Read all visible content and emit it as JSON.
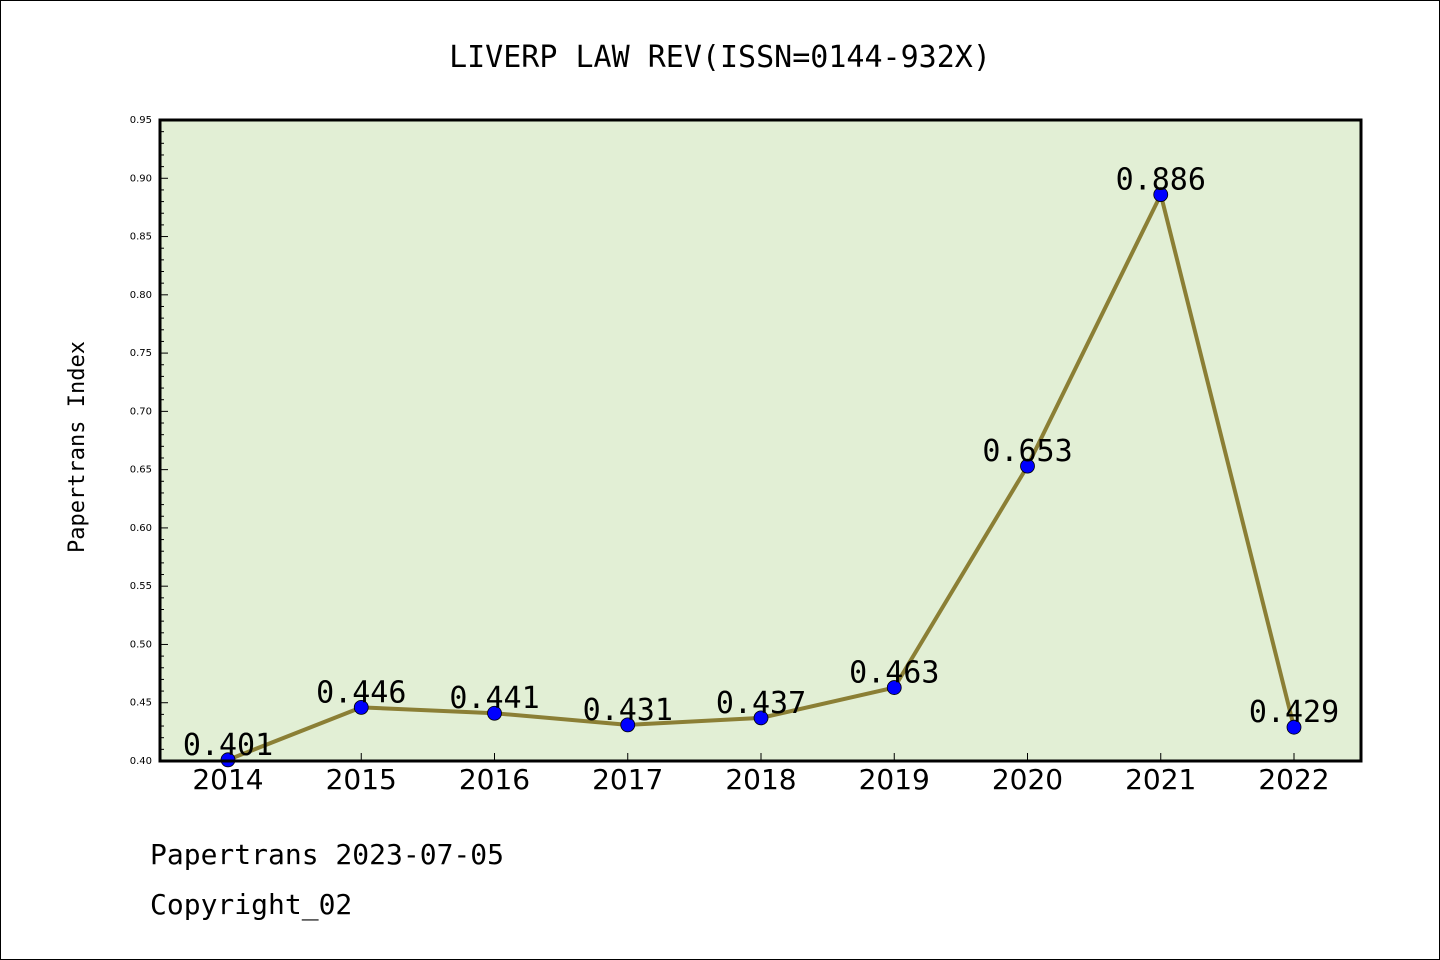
{
  "chart_data": {
    "type": "line",
    "title": "LIVERP LAW REV(ISSN=0144-932X)",
    "xlabel": "",
    "ylabel": "Papertrans Index",
    "categories": [
      "2014",
      "2015",
      "2016",
      "2017",
      "2018",
      "2019",
      "2020",
      "2021",
      "2022"
    ],
    "series": [
      {
        "values": [
          0.401,
          0.446,
          0.441,
          0.431,
          0.437,
          0.463,
          0.653,
          0.886,
          0.429
        ]
      }
    ],
    "data_labels": [
      "0.401",
      "0.446",
      "0.441",
      "0.431",
      "0.437",
      "0.463",
      "0.653",
      "0.886",
      "0.429"
    ],
    "ylim": [
      0.4,
      0.95
    ],
    "yticks": [
      "0.40",
      "0.45",
      "0.50",
      "0.55",
      "0.60",
      "0.65",
      "0.70",
      "0.75",
      "0.80",
      "0.85",
      "0.90",
      "0.95"
    ],
    "grid": false,
    "colors": {
      "plot_background": "#e2efd5",
      "line": "#8b7f35",
      "marker": "#0000ff"
    }
  },
  "footer": {
    "line1": "Papertrans 2023-07-05",
    "line2": "Copyright_02"
  }
}
